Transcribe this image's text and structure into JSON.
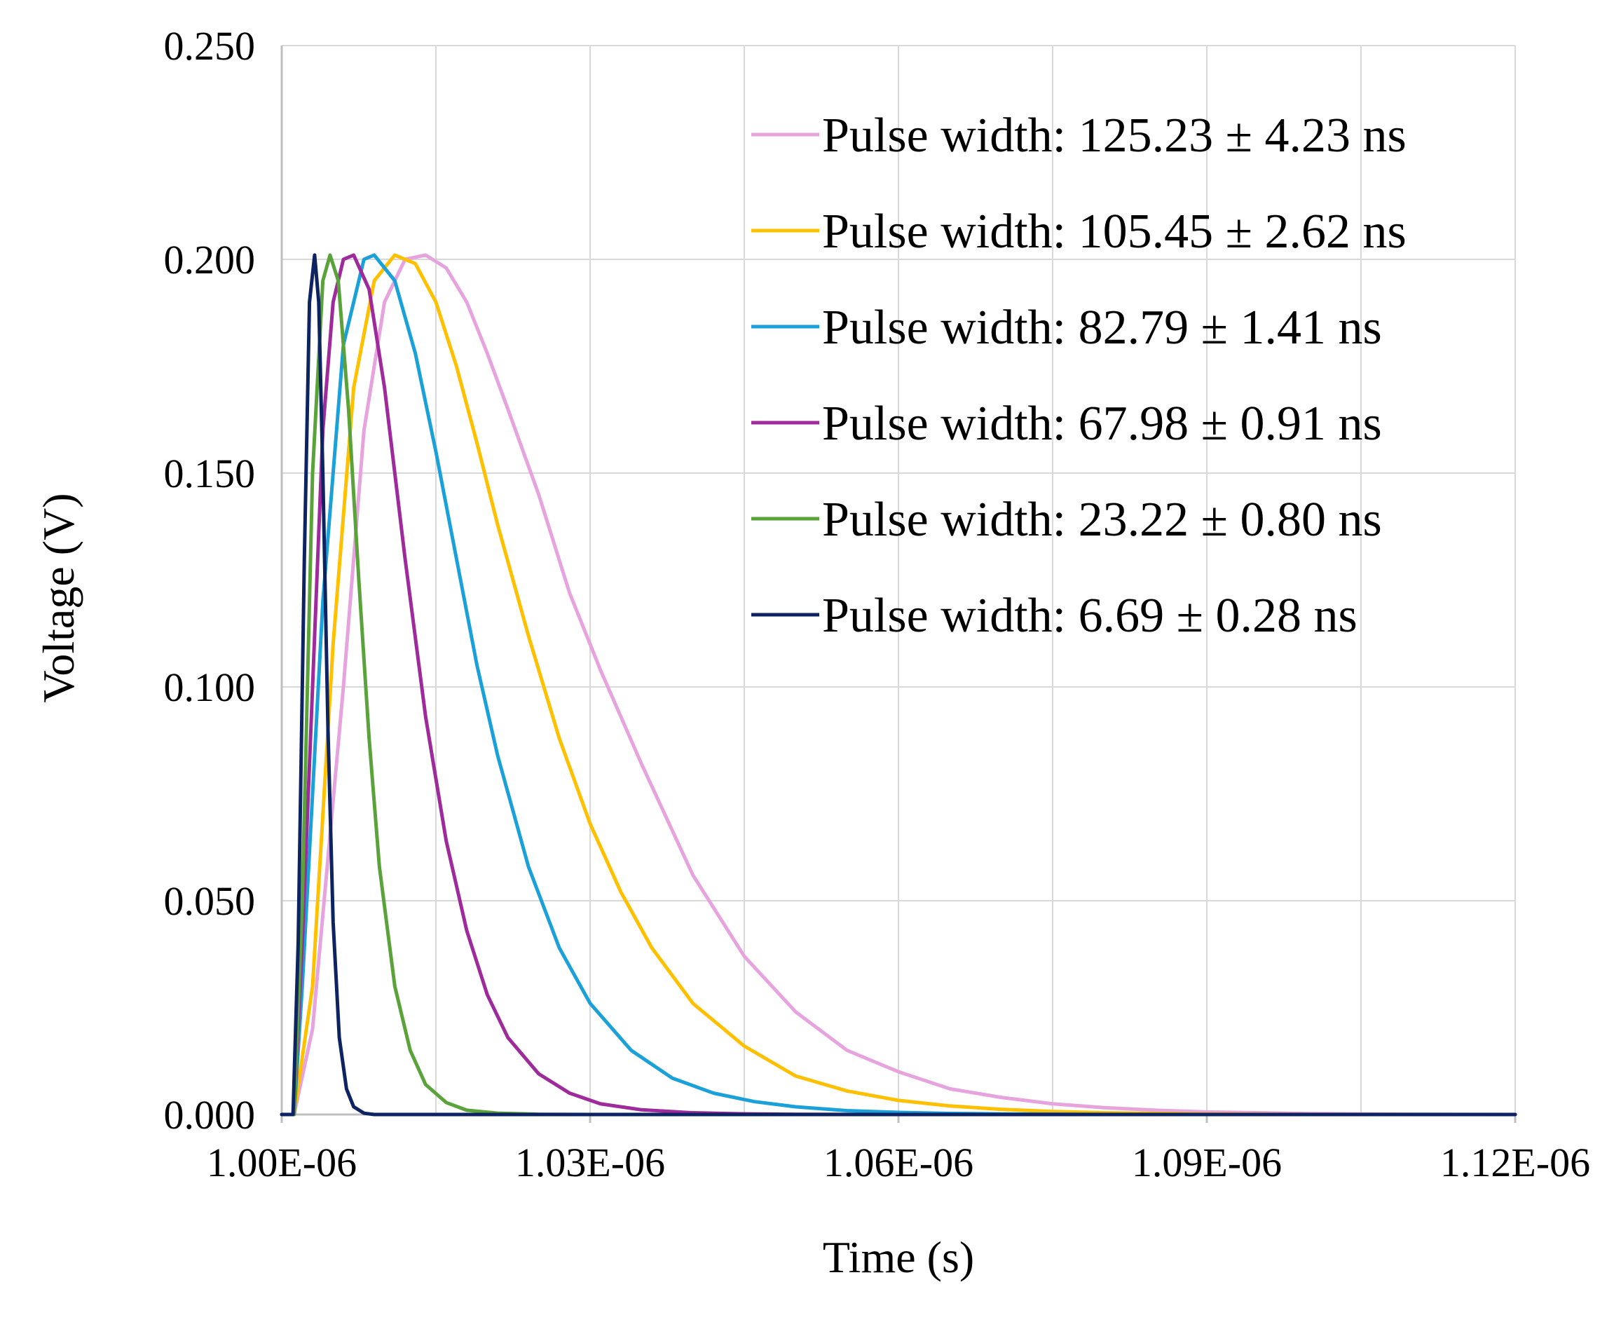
{
  "chart_data": {
    "type": "line",
    "title": "",
    "xlabel": "Time (s)",
    "ylabel": "Voltage (V)",
    "xlim": [
      1e-06,
      1.12e-06
    ],
    "ylim": [
      0,
      0.25
    ],
    "x_ticks": [
      1e-06,
      1.03e-06,
      1.06e-06,
      1.09e-06,
      1.12e-06
    ],
    "x_tick_labels": [
      "1.00E-06",
      "1.03E-06",
      "1.06E-06",
      "1.09E-06",
      "1.12E-06"
    ],
    "y_ticks": [
      0,
      0.05,
      0.1,
      0.15,
      0.2,
      0.25
    ],
    "y_tick_labels": [
      "0.000",
      "0.050",
      "0.100",
      "0.150",
      "0.200",
      "0.250"
    ],
    "grid": true,
    "legend_position": "top-right",
    "series": [
      {
        "name": "Pulse width: 125.23 ± 4.23 ns",
        "color": "#e6a3de",
        "x": [
          1e-06,
          1.0012e-06,
          1.003e-06,
          1.006e-06,
          1.008e-06,
          1.01e-06,
          1.012e-06,
          1.014e-06,
          1.016e-06,
          1.018e-06,
          1.02e-06,
          1.022e-06,
          1.025e-06,
          1.028e-06,
          1.031e-06,
          1.035e-06,
          1.04e-06,
          1.045e-06,
          1.05e-06,
          1.055e-06,
          1.06e-06,
          1.065e-06,
          1.07e-06,
          1.075e-06,
          1.08e-06,
          1.085e-06,
          1.09e-06,
          1.1e-06,
          1.11e-06,
          1.12e-06
        ],
        "y": [
          0,
          0,
          0.02,
          0.1,
          0.16,
          0.19,
          0.2,
          0.201,
          0.198,
          0.19,
          0.178,
          0.165,
          0.145,
          0.122,
          0.104,
          0.082,
          0.056,
          0.037,
          0.024,
          0.015,
          0.01,
          0.006,
          0.004,
          0.0025,
          0.0016,
          0.001,
          0.0006,
          0.0002,
          5e-05,
          0
        ]
      },
      {
        "name": "Pulse width: 105.45 ± 2.62 ns",
        "color": "#ffc000",
        "x": [
          1e-06,
          1.0012e-06,
          1.003e-06,
          1.005e-06,
          1.007e-06,
          1.009e-06,
          1.011e-06,
          1.013e-06,
          1.015e-06,
          1.017e-06,
          1.019e-06,
          1.021e-06,
          1.024e-06,
          1.027e-06,
          1.03e-06,
          1.033e-06,
          1.036e-06,
          1.04e-06,
          1.045e-06,
          1.05e-06,
          1.055e-06,
          1.06e-06,
          1.065e-06,
          1.07e-06,
          1.075e-06,
          1.08e-06,
          1.09e-06,
          1.1e-06,
          1.12e-06
        ],
        "y": [
          0,
          0,
          0.03,
          0.11,
          0.17,
          0.195,
          0.201,
          0.199,
          0.19,
          0.175,
          0.157,
          0.138,
          0.112,
          0.088,
          0.068,
          0.052,
          0.039,
          0.026,
          0.016,
          0.009,
          0.0055,
          0.0033,
          0.002,
          0.0012,
          0.0007,
          0.0004,
          0.0001,
          0,
          0
        ]
      },
      {
        "name": "Pulse width: 82.79 ± 1.41 ns",
        "color": "#1ba1d9",
        "x": [
          1e-06,
          1.0012e-06,
          1.002e-06,
          1.004e-06,
          1.006e-06,
          1.008e-06,
          1.009e-06,
          1.011e-06,
          1.013e-06,
          1.015e-06,
          1.017e-06,
          1.019e-06,
          1.021e-06,
          1.024e-06,
          1.027e-06,
          1.03e-06,
          1.034e-06,
          1.038e-06,
          1.042e-06,
          1.046e-06,
          1.05e-06,
          1.055e-06,
          1.06e-06,
          1.065e-06,
          1.07e-06,
          1.08e-06,
          1.09e-06,
          1.12e-06
        ],
        "y": [
          0,
          0,
          0.03,
          0.12,
          0.18,
          0.2,
          0.201,
          0.195,
          0.178,
          0.155,
          0.13,
          0.105,
          0.084,
          0.058,
          0.039,
          0.026,
          0.015,
          0.0085,
          0.005,
          0.003,
          0.0018,
          0.0009,
          0.0005,
          0.00025,
          0.00012,
          3e-05,
          0,
          0
        ]
      },
      {
        "name": "Pulse width: 67.98 ± 0.91 ns",
        "color": "#9e2a9c",
        "x": [
          1e-06,
          1.0012e-06,
          1.002e-06,
          1.004e-06,
          1.005e-06,
          1.006e-06,
          1.007e-06,
          1.0085e-06,
          1.01e-06,
          1.012e-06,
          1.014e-06,
          1.016e-06,
          1.018e-06,
          1.02e-06,
          1.022e-06,
          1.025e-06,
          1.028e-06,
          1.031e-06,
          1.035e-06,
          1.04e-06,
          1.045e-06,
          1.05e-06,
          1.06e-06,
          1.07e-06,
          1.12e-06
        ],
        "y": [
          0,
          0,
          0.04,
          0.16,
          0.19,
          0.2,
          0.201,
          0.193,
          0.17,
          0.13,
          0.093,
          0.064,
          0.043,
          0.028,
          0.018,
          0.0095,
          0.005,
          0.0025,
          0.0011,
          0.0004,
          0.00015,
          5e-05,
          0,
          0,
          0
        ]
      },
      {
        "name": "Pulse width: 23.22 ± 0.80 ns",
        "color": "#5aa33a",
        "x": [
          1e-06,
          1.0012e-06,
          1.002e-06,
          1.003e-06,
          1.004e-06,
          1.0047e-06,
          1.0055e-06,
          1.0065e-06,
          1.0075e-06,
          1.0085e-06,
          1.0095e-06,
          1.011e-06,
          1.0125e-06,
          1.014e-06,
          1.016e-06,
          1.018e-06,
          1.021e-06,
          1.025e-06,
          1.03e-06,
          1.12e-06
        ],
        "y": [
          0,
          0,
          0.05,
          0.15,
          0.195,
          0.201,
          0.195,
          0.165,
          0.125,
          0.088,
          0.058,
          0.03,
          0.015,
          0.007,
          0.0028,
          0.001,
          0.0003,
          5e-05,
          0,
          0
        ]
      },
      {
        "name": "Pulse width: 6.69 ± 0.28 ns",
        "color": "#0e2361",
        "x": [
          1e-06,
          1.0011e-06,
          1.0016e-06,
          1.0022e-06,
          1.0027e-06,
          1.0032e-06,
          1.0036e-06,
          1.004e-06,
          1.0045e-06,
          1.005e-06,
          1.0056e-06,
          1.0063e-06,
          1.007e-06,
          1.008e-06,
          1.009e-06,
          1.12e-06
        ],
        "y": [
          0,
          0,
          0.04,
          0.13,
          0.19,
          0.201,
          0.19,
          0.15,
          0.09,
          0.045,
          0.018,
          0.006,
          0.0018,
          0.0003,
          0,
          0
        ]
      }
    ]
  }
}
